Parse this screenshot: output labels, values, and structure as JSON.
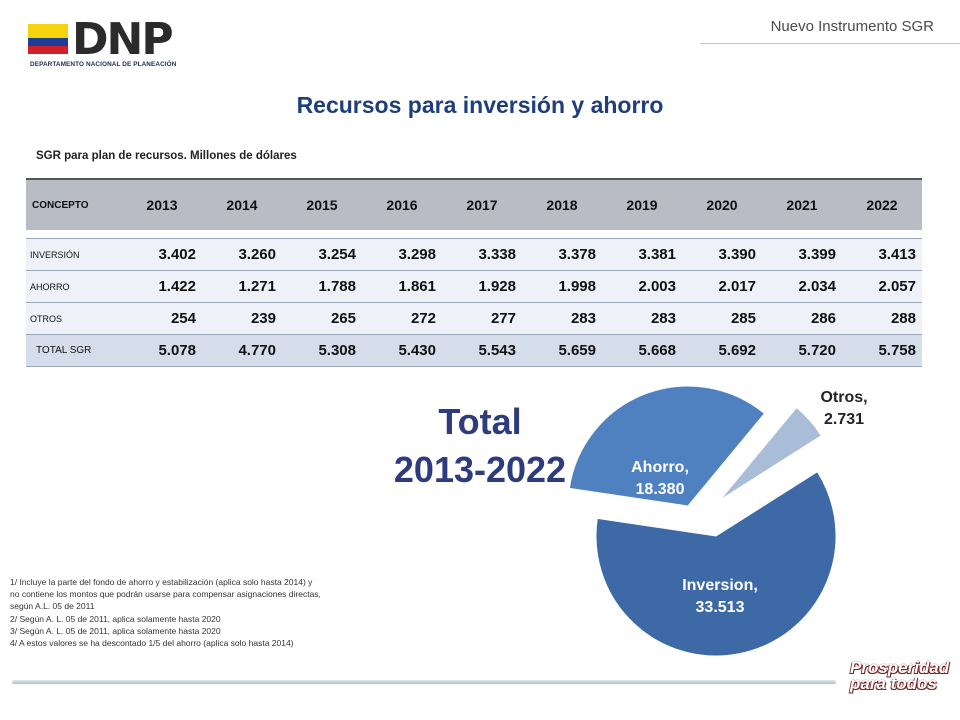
{
  "header": {
    "logo_text": "DNP",
    "logo_subtitle": "DEPARTAMENTO NACIONAL DE PLANEACIÓN",
    "right_label": "Nuevo Instrumento SGR"
  },
  "title": "Recursos para inversión y ahorro",
  "subtitle": "SGR para plan de recursos. Millones de dólares",
  "table": {
    "concept_header": "CONCEPTO",
    "years": [
      "2013",
      "2014",
      "2015",
      "2016",
      "2017",
      "2018",
      "2019",
      "2020",
      "2021",
      "2022"
    ],
    "rows": [
      {
        "label": "INVERSIÓN",
        "values": [
          "3.402",
          "3.260",
          "3.254",
          "3.298",
          "3.338",
          "3.378",
          "3.381",
          "3.390",
          "3.399",
          "3.413"
        ]
      },
      {
        "label": "AHORRO",
        "values": [
          "1.422",
          "1.271",
          "1.788",
          "1.861",
          "1.928",
          "1.998",
          "2.003",
          "2.017",
          "2.034",
          "2.057"
        ]
      },
      {
        "label": "OTROS",
        "values": [
          "254",
          "239",
          "265",
          "272",
          "277",
          "283",
          "283",
          "285",
          "286",
          "288"
        ]
      },
      {
        "label": "TOTAL SGR",
        "values": [
          "5.078",
          "4.770",
          "5.308",
          "5.430",
          "5.543",
          "5.659",
          "5.668",
          "5.692",
          "5.720",
          "5.758"
        ]
      }
    ]
  },
  "total_label": {
    "line1": "Total",
    "line2": "2013-2022"
  },
  "chart_data": {
    "type": "pie",
    "slices": [
      {
        "label": "Inversion,",
        "value_text": "33.513",
        "value": 33513,
        "color": "#3d6aa6"
      },
      {
        "label": "Ahorro,",
        "value_text": "18.380",
        "value": 18380,
        "color": "#4f80c0"
      },
      {
        "label": "Otros,",
        "value_text": "2.731",
        "value": 2731,
        "color": "#a9bcd8"
      }
    ]
  },
  "notes": [
    "1/ Incluye la parte del fondo de ahorro y estabilización (aplica solo hasta 2014) y",
    "no contiene los montos que podrán usarse para compensar asignaciones directas,",
    "según A.L. 05 de 2011",
    "2/ Según A. L. 05 de 2011, aplica solamente hasta 2020",
    "3/ Según A. L. 05 de 2011, aplica solamente hasta 2020",
    "4/ A estos valores se ha descontado 1/5 del ahorro (aplica solo hasta 2014)"
  ],
  "footer": {
    "slogan_line1": "Prosperidad",
    "slogan_line2": "para todos"
  },
  "colors": {
    "title": "#1f3f7a",
    "total_label": "#2e3b7c",
    "table_header": "#b9bcc4",
    "table_total_row": "#d5dcea"
  }
}
